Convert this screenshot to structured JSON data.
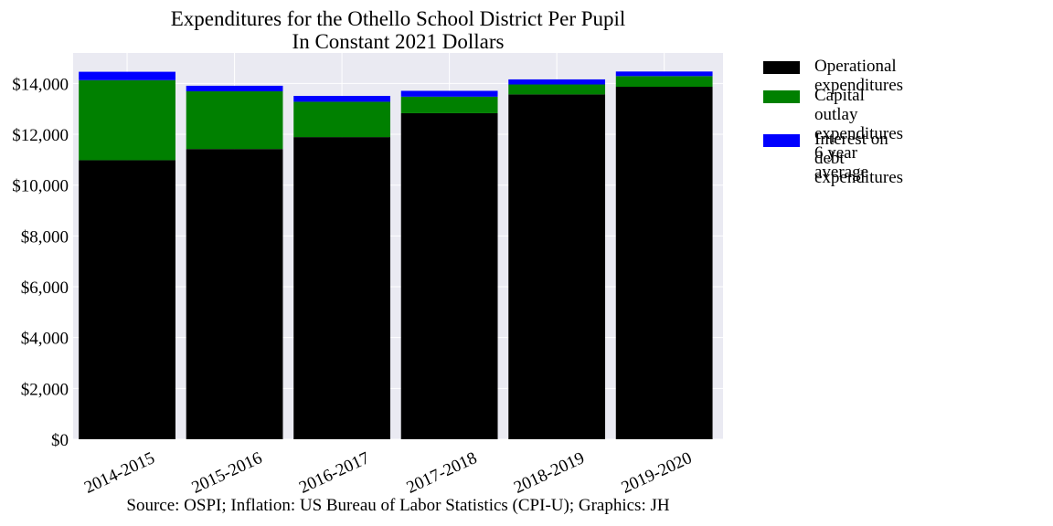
{
  "chart_data": {
    "type": "bar",
    "stacked": true,
    "title": "Expenditures for the Othello School District Per Pupil",
    "subtitle": "In Constant 2021 Dollars",
    "xlabel": "",
    "ylabel": "",
    "categories": [
      "2014-2015",
      "2015-2016",
      "2016-2017",
      "2017-2018",
      "2018-2019",
      "2019-2020"
    ],
    "series": [
      {
        "name": "Operational expenditures",
        "color": "#000000",
        "values": [
          10980,
          11420,
          11890,
          12830,
          13570,
          13870
        ]
      },
      {
        "name": "Capital outlay expenditures\n6 year average",
        "color": "#008000",
        "values": [
          3150,
          2270,
          1390,
          650,
          390,
          420
        ]
      },
      {
        "name": "Interest on debt expenditures",
        "color": "#0000ff",
        "values": [
          330,
          220,
          230,
          230,
          200,
          180
        ]
      }
    ],
    "ylim": [
      0,
      15200
    ],
    "yticks": [
      0,
      2000,
      4000,
      6000,
      8000,
      10000,
      12000,
      14000
    ],
    "ytick_labels": [
      "$0",
      "$2,000",
      "$4,000",
      "$6,000",
      "$8,000",
      "$10,000",
      "$12,000",
      "$14,000"
    ],
    "grid": true,
    "legend_position": "outside right, top",
    "background": "#eaeaf2",
    "source": "Source: OSPI; Inflation: US Bureau of Labor Statistics (CPI-U); Graphics: JH"
  }
}
